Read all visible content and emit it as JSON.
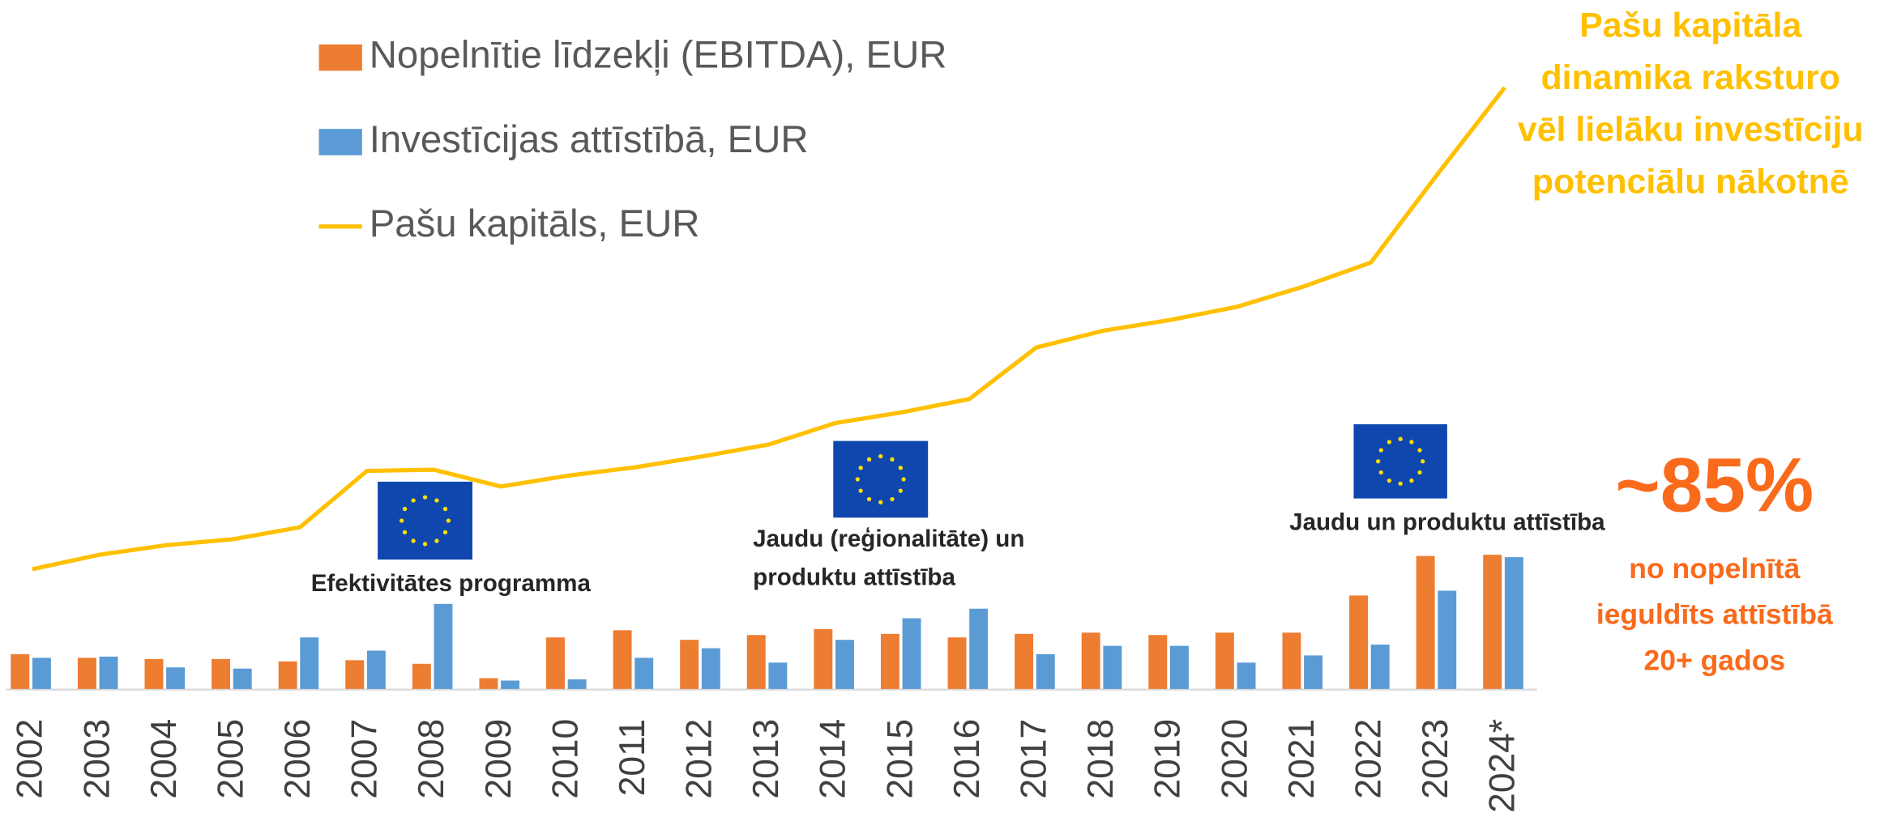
{
  "chart_data": {
    "type": "bar",
    "categories": [
      "2002",
      "2003",
      "2004",
      "2005",
      "2006",
      "2007",
      "2008",
      "2009",
      "2010",
      "2011",
      "2012",
      "2013",
      "2014",
      "2015",
      "2016",
      "2017",
      "2018",
      "2019",
      "2020",
      "2021",
      "2022",
      "2023",
      "2024*"
    ],
    "series": [
      {
        "name": "Nopelnītie līdzekļi (EBITDA), EUR",
        "color": "#ED7D31",
        "type": "bar",
        "values": [
          29,
          26,
          25,
          25,
          23,
          24,
          21,
          9,
          43,
          49,
          41,
          45,
          50,
          46,
          43,
          46,
          47,
          45,
          47,
          47,
          78,
          111,
          112
        ]
      },
      {
        "name": "Investīcijas attīstībā, EUR",
        "color": "#5B9BD5",
        "type": "bar",
        "values": [
          26,
          27,
          18,
          17,
          43,
          32,
          71,
          7,
          8,
          26,
          34,
          22,
          41,
          59,
          67,
          29,
          36,
          36,
          22,
          28,
          37,
          82,
          110
        ]
      },
      {
        "name": "Pašu kapitāls, EUR",
        "color": "#FFC000",
        "type": "line",
        "values": [
          100,
          112,
          120,
          125,
          135,
          182,
          183,
          169,
          178,
          185,
          194,
          204,
          222,
          231,
          242,
          285,
          299,
          308,
          319,
          336,
          356,
          430,
          502
        ]
      }
    ],
    "annotations": {
      "flag_1": [
        "Efektivitātes programma"
      ],
      "flag_2": [
        "Jaudu (reģionalitāte) un",
        "produktu attīstība"
      ],
      "flag_3": [
        "Jaudu un produktu attīstība"
      ],
      "equity_note": [
        "Pašu kapitāla",
        "dinamika raksturo",
        "vēl lielāku investīciju",
        "potenciālu nākotnē"
      ],
      "share": "~85%",
      "share_note": [
        "no nopelnītā",
        "ieguldīts attīstībā",
        "20+ gados"
      ]
    }
  }
}
